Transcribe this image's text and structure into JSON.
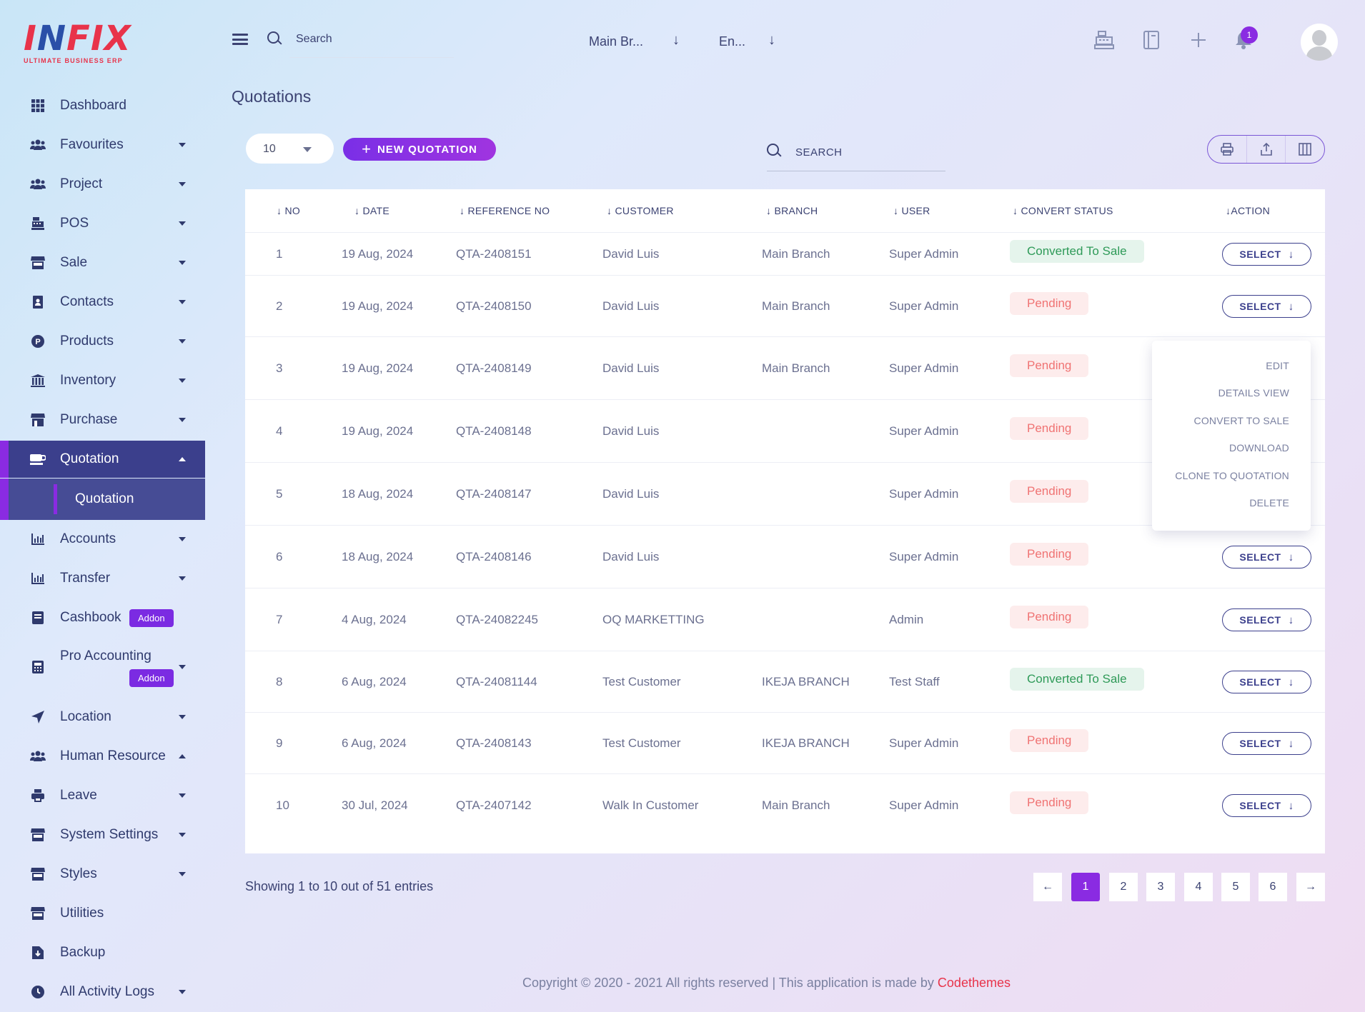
{
  "logo": {
    "text_a": "I",
    "text_b": "N",
    "text_c": "FIX",
    "subtitle": "ULTIMATE BUSINESS ERP"
  },
  "sidebar": {
    "items": [
      {
        "label": "Dashboard",
        "icon": "grid-icon"
      },
      {
        "label": "Favourites",
        "icon": "users-icon"
      },
      {
        "label": "Project",
        "icon": "users-icon"
      },
      {
        "label": "POS",
        "icon": "cash-register-icon"
      },
      {
        "label": "Sale",
        "icon": "store-icon"
      },
      {
        "label": "Contacts",
        "icon": "address-book-icon"
      },
      {
        "label": "Products",
        "icon": "product-icon"
      },
      {
        "label": "Inventory",
        "icon": "warehouse-icon"
      },
      {
        "label": "Purchase",
        "icon": "store-icon"
      },
      {
        "label": "Quotation",
        "icon": "quotation-icon"
      },
      {
        "label": "Accounts",
        "icon": "chart-icon"
      },
      {
        "label": "Transfer",
        "icon": "chart-icon"
      },
      {
        "label": "Cashbook",
        "icon": "book-icon",
        "badge": "Addon"
      },
      {
        "label": "Pro Accounting",
        "icon": "calculator-icon",
        "badge": "Addon"
      },
      {
        "label": "Location",
        "icon": "location-arrow-icon"
      },
      {
        "label": "Human Resource",
        "icon": "users-icon"
      },
      {
        "label": "Leave",
        "icon": "printer-icon"
      },
      {
        "label": "System Settings",
        "icon": "store-icon"
      },
      {
        "label": "Styles",
        "icon": "store-icon"
      },
      {
        "label": "Utilities",
        "icon": "store-icon"
      },
      {
        "label": "Backup",
        "icon": "file-download-icon"
      },
      {
        "label": "All Activity Logs",
        "icon": "clock-icon"
      }
    ],
    "sub_item": "Quotation"
  },
  "header": {
    "search_label": "Search",
    "branch": "Main Br...",
    "language": "En...",
    "notification_count": "1"
  },
  "page": {
    "title": "Quotations",
    "per_page": "10",
    "new_button": "NEW QUOTATION",
    "search_label": "SEARCH"
  },
  "table": {
    "columns": [
      "NO",
      "DATE",
      "REFERENCE NO",
      "CUSTOMER",
      "BRANCH",
      "USER",
      "CONVERT STATUS",
      "ACTION"
    ],
    "rows": [
      {
        "no": "1",
        "date": "19 Aug, 2024",
        "ref": "QTA-2408151",
        "customer": "David Luis",
        "branch": "Main Branch",
        "user": "Super Admin",
        "status": "Converted To Sale"
      },
      {
        "no": "2",
        "date": "19 Aug, 2024",
        "ref": "QTA-2408150",
        "customer": "David Luis",
        "branch": "Main Branch",
        "user": "Super Admin",
        "status": "Pending"
      },
      {
        "no": "3",
        "date": "19 Aug, 2024",
        "ref": "QTA-2408149",
        "customer": "David Luis",
        "branch": "Main Branch",
        "user": "Super Admin",
        "status": "Pending"
      },
      {
        "no": "4",
        "date": "19 Aug, 2024",
        "ref": "QTA-2408148",
        "customer": "David Luis",
        "branch": "",
        "user": "Super Admin",
        "status": "Pending"
      },
      {
        "no": "5",
        "date": "18 Aug, 2024",
        "ref": "QTA-2408147",
        "customer": "David Luis",
        "branch": "",
        "user": "Super Admin",
        "status": "Pending"
      },
      {
        "no": "6",
        "date": "18 Aug, 2024",
        "ref": "QTA-2408146",
        "customer": "David Luis",
        "branch": "",
        "user": "Super Admin",
        "status": "Pending"
      },
      {
        "no": "7",
        "date": "4 Aug, 2024",
        "ref": "QTA-24082245",
        "customer": "OQ MARKETTING",
        "branch": "",
        "user": "Admin",
        "status": "Pending"
      },
      {
        "no": "8",
        "date": "6 Aug, 2024",
        "ref": "QTA-24081144",
        "customer": "Test Customer",
        "branch": "IKEJA BRANCH",
        "user": "Test Staff",
        "status": "Converted To Sale"
      },
      {
        "no": "9",
        "date": "6 Aug, 2024",
        "ref": "QTA-2408143",
        "customer": "Test Customer",
        "branch": "IKEJA BRANCH",
        "user": "Super Admin",
        "status": "Pending"
      },
      {
        "no": "10",
        "date": "30 Jul, 2024",
        "ref": "QTA-2407142",
        "customer": "Walk In Customer",
        "branch": "Main Branch",
        "user": "Super Admin",
        "status": "Pending"
      }
    ],
    "select_label": "SELECT"
  },
  "action_menu": [
    "EDIT",
    "DETAILS VIEW",
    "CONVERT TO SALE",
    "DOWNLOAD",
    "CLONE TO QUOTATION",
    "DELETE"
  ],
  "footer": {
    "showing": "Showing 1 to 10 out of 51 entries",
    "pages": [
      "1",
      "2",
      "3",
      "4",
      "5",
      "6"
    ],
    "prev": "←",
    "next": "→",
    "copyright": "Copyright © 2020 - 2021 All rights reserved | This application is made by",
    "brand": "Codethemes"
  },
  "colors": {
    "accent": "#8a2be2",
    "nav_active": "#3b3f8c",
    "success": "#2e9a58",
    "pending": "#f07373"
  }
}
